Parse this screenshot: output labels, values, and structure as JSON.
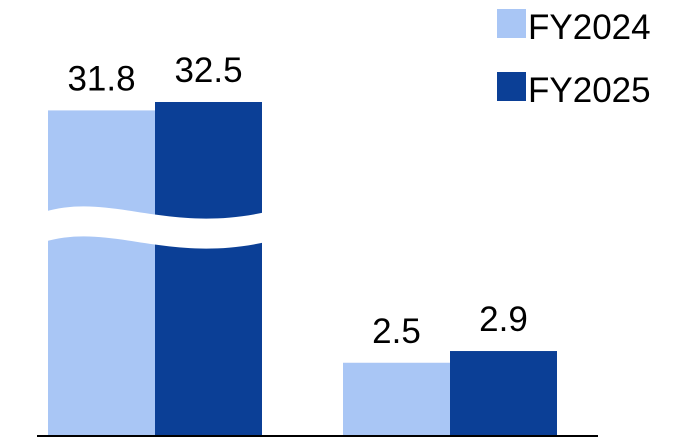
{
  "chart_data": {
    "type": "bar",
    "categories": [
      "",
      ""
    ],
    "series": [
      {
        "name": "FY2024",
        "color": "#a9c6f5",
        "values": [
          31.8,
          2.5
        ],
        "labels": [
          "31.8",
          "2.5"
        ]
      },
      {
        "name": "FY2025",
        "color": "#0b3f96",
        "values": [
          32.5,
          2.9
        ],
        "labels": [
          "32.5",
          "2.9"
        ]
      }
    ],
    "axis_break": true,
    "grid": false,
    "legend_position": "top-right",
    "title": "",
    "xlabel": "",
    "ylabel": ""
  }
}
